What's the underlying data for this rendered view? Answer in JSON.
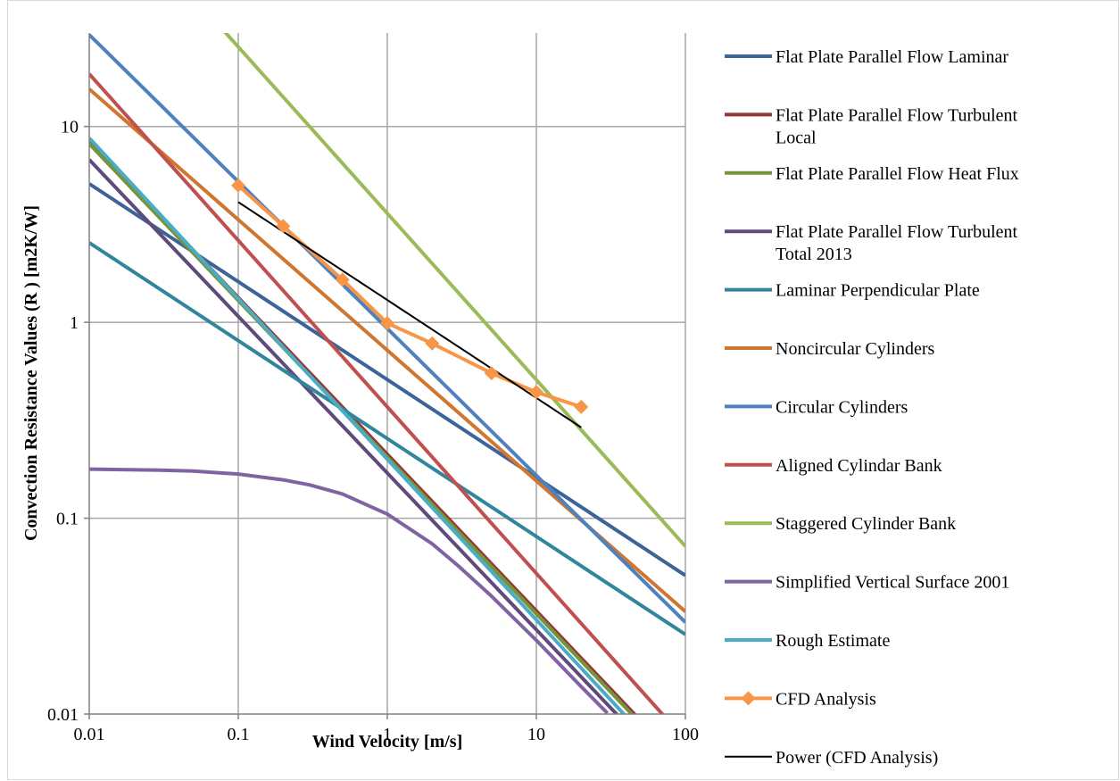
{
  "chart_data": {
    "type": "line",
    "xscale": "log",
    "yscale": "log",
    "xlim": [
      0.01,
      100
    ],
    "ylim": [
      0.01,
      30
    ],
    "grid": true,
    "legend_position": "right",
    "xlabel": "Wind Velocity [m/s]",
    "ylabel": "Convection Resistance Values (R ) [m2K/W]",
    "x_ticks": [
      0.01,
      0.1,
      1,
      10,
      100
    ],
    "x_tick_labels": [
      "0.01",
      "0.1",
      "1",
      "10",
      "100"
    ],
    "y_ticks": [
      0.01,
      0.1,
      1,
      10
    ],
    "y_tick_labels": [
      "0.01",
      "0.1",
      "1",
      "10"
    ],
    "series": [
      {
        "name": "Flat Plate Parallel Flow Laminar",
        "color": "#3c6497",
        "kind": "power",
        "a": 0.51,
        "b": -0.5,
        "x_range": [
          0.01,
          100
        ],
        "marker": "none",
        "legend_lines": [
          "Flat Plate Parallel Flow Laminar"
        ]
      },
      {
        "name": "Flat Plate Parallel Flow Turbulent Local",
        "color": "#953735",
        "kind": "power",
        "a": 0.212,
        "b": -0.8,
        "x_range": [
          0.01,
          100
        ],
        "marker": "none",
        "legend_lines": [
          "Flat Plate Parallel Flow Turbulent",
          "Local"
        ]
      },
      {
        "name": "Flat Plate Parallel Flow Heat Flux",
        "color": "#77933c",
        "kind": "power",
        "a": 0.205,
        "b": -0.8,
        "x_range": [
          0.01,
          100
        ],
        "marker": "none",
        "legend_lines": [
          "Flat Plate Parallel Flow Heat Flux"
        ]
      },
      {
        "name": "Flat Plate Parallel Flow Turbulent Total 2013",
        "color": "#604a7b",
        "kind": "power",
        "a": 0.17,
        "b": -0.8,
        "x_range": [
          0.01,
          100
        ],
        "marker": "none",
        "legend_lines": [
          "Flat Plate Parallel Flow Turbulent",
          "Total 2013"
        ]
      },
      {
        "name": "Laminar Perpendicular Plate",
        "color": "#31859c",
        "kind": "power",
        "a": 0.255,
        "b": -0.5,
        "x_range": [
          0.01,
          100
        ],
        "marker": "none",
        "legend_lines": [
          "Laminar Perpendicular Plate"
        ]
      },
      {
        "name": "Noncircular Cylinders",
        "color": "#d0762f",
        "kind": "power",
        "a": 0.72,
        "b": -0.667,
        "x_range": [
          0.01,
          100
        ],
        "marker": "none",
        "legend_lines": [
          "Noncircular Cylinders"
        ]
      },
      {
        "name": "Circular Cylinders",
        "color": "#4f81bd",
        "kind": "power",
        "a": 0.93,
        "b": -0.75,
        "x_range": [
          0.01,
          100
        ],
        "marker": "none",
        "legend_lines": [
          "Circular Cylinders"
        ]
      },
      {
        "name": "Aligned Cylindar Bank",
        "color": "#c0504d",
        "kind": "power",
        "a": 0.37,
        "b": -0.85,
        "x_range": [
          0.01,
          100
        ],
        "marker": "none",
        "legend_lines": [
          "Aligned Cylindar Bank"
        ]
      },
      {
        "name": "Staggered Cylinder Bank",
        "color": "#9bbb59",
        "kind": "power",
        "a": 3.6,
        "b": -0.85,
        "x_range": [
          0.01,
          100
        ],
        "marker": "none",
        "legend_lines": [
          "Staggered Cylinder Bank"
        ]
      },
      {
        "name": "Simplified Vertical Surface 2001",
        "color": "#8064a2",
        "kind": "points",
        "x": [
          0.01,
          0.03,
          0.05,
          0.1,
          0.2,
          0.3,
          0.5,
          1,
          2,
          3,
          5,
          10,
          20,
          30
        ],
        "y": [
          0.178,
          0.176,
          0.174,
          0.168,
          0.157,
          0.148,
          0.133,
          0.105,
          0.074,
          0.057,
          0.04,
          0.0238,
          0.0138,
          0.0101
        ],
        "marker": "none",
        "legend_lines": [
          "Simplified Vertical Surface 2001"
        ]
      },
      {
        "name": "Rough Estimate",
        "color": "#4bacc6",
        "kind": "power",
        "a": 0.2,
        "b": -0.82,
        "x_range": [
          0.01,
          100
        ],
        "marker": "none",
        "legend_lines": [
          "Rough Estimate"
        ]
      },
      {
        "name": "CFD Analysis",
        "color": "#f79646",
        "kind": "points",
        "x": [
          0.1,
          0.2,
          0.5,
          1,
          2,
          5,
          10,
          20
        ],
        "y": [
          5.0,
          3.1,
          1.65,
          0.99,
          0.78,
          0.55,
          0.44,
          0.37
        ],
        "marker": "diamond",
        "legend_lines": [
          "CFD Analysis"
        ]
      },
      {
        "name": "Power (CFD Analysis)",
        "color": "#000000",
        "kind": "power",
        "a": 1.3,
        "b": -0.5,
        "x_range": [
          0.1,
          20
        ],
        "marker": "none",
        "thin": true,
        "legend_lines": [
          "Power (CFD Analysis)"
        ]
      }
    ]
  }
}
